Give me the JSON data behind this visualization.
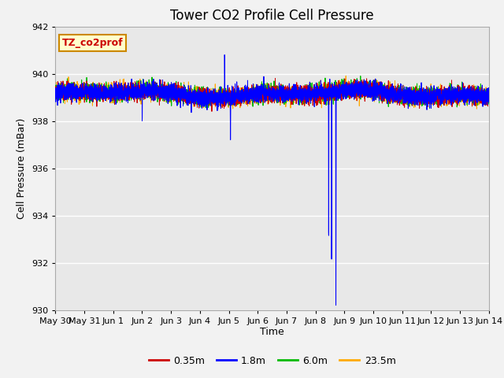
{
  "title": "Tower CO2 Profile Cell Pressure",
  "xlabel": "Time",
  "ylabel": "Cell Pressure (mBar)",
  "ylim": [
    930,
    942
  ],
  "yticks": [
    930,
    932,
    934,
    936,
    938,
    940,
    942
  ],
  "xtick_labels": [
    "May 30",
    "May 31",
    "Jun 1",
    "Jun 2",
    "Jun 3",
    "Jun 4",
    "Jun 5",
    "Jun 6",
    "Jun 7",
    "Jun 8",
    "Jun 9",
    "Jun 10",
    "Jun 11",
    "Jun 12",
    "Jun 13",
    "Jun 14"
  ],
  "xtick_positions": [
    0,
    1,
    2,
    3,
    4,
    5,
    6,
    7,
    8,
    9,
    10,
    11,
    12,
    13,
    14,
    15
  ],
  "series": [
    {
      "label": "0.35m",
      "color": "#cc0000"
    },
    {
      "label": "1.8m",
      "color": "#0000ff"
    },
    {
      "label": "6.0m",
      "color": "#00bb00"
    },
    {
      "label": "23.5m",
      "color": "#ffaa00"
    }
  ],
  "baseline": 939.15,
  "noise_amp": 0.18,
  "background_color": "#e8e8e8",
  "plot_bg": "#e8e8e8",
  "fig_bg": "#f2f2f2",
  "annotation_text": "TZ_co2prof",
  "annotation_bg": "#ffffcc",
  "annotation_border": "#cc8800",
  "title_fontsize": 12,
  "label_fontsize": 9,
  "tick_fontsize": 8,
  "legend_fontsize": 9
}
